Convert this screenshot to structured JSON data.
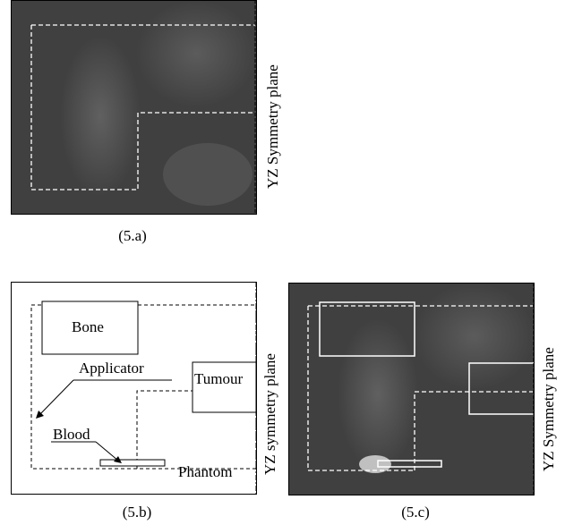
{
  "figure_a": {
    "caption": "(5.a)",
    "side_label": "YZ Symmetry plane"
  },
  "figure_b": {
    "caption": "(5.b)",
    "side_label": "YZ symmetry plane",
    "labels": {
      "bone": "Bone",
      "applicator": "Applicator",
      "tumour": "Tumour",
      "blood": "Blood",
      "phantom": "Phantom"
    }
  },
  "figure_c": {
    "caption": "(5.c)",
    "side_label": "YZ Symmetry plane"
  },
  "colors": {
    "field_dark": "#3a3a3a",
    "field_light": "#ffffff",
    "outline": "#000000"
  }
}
